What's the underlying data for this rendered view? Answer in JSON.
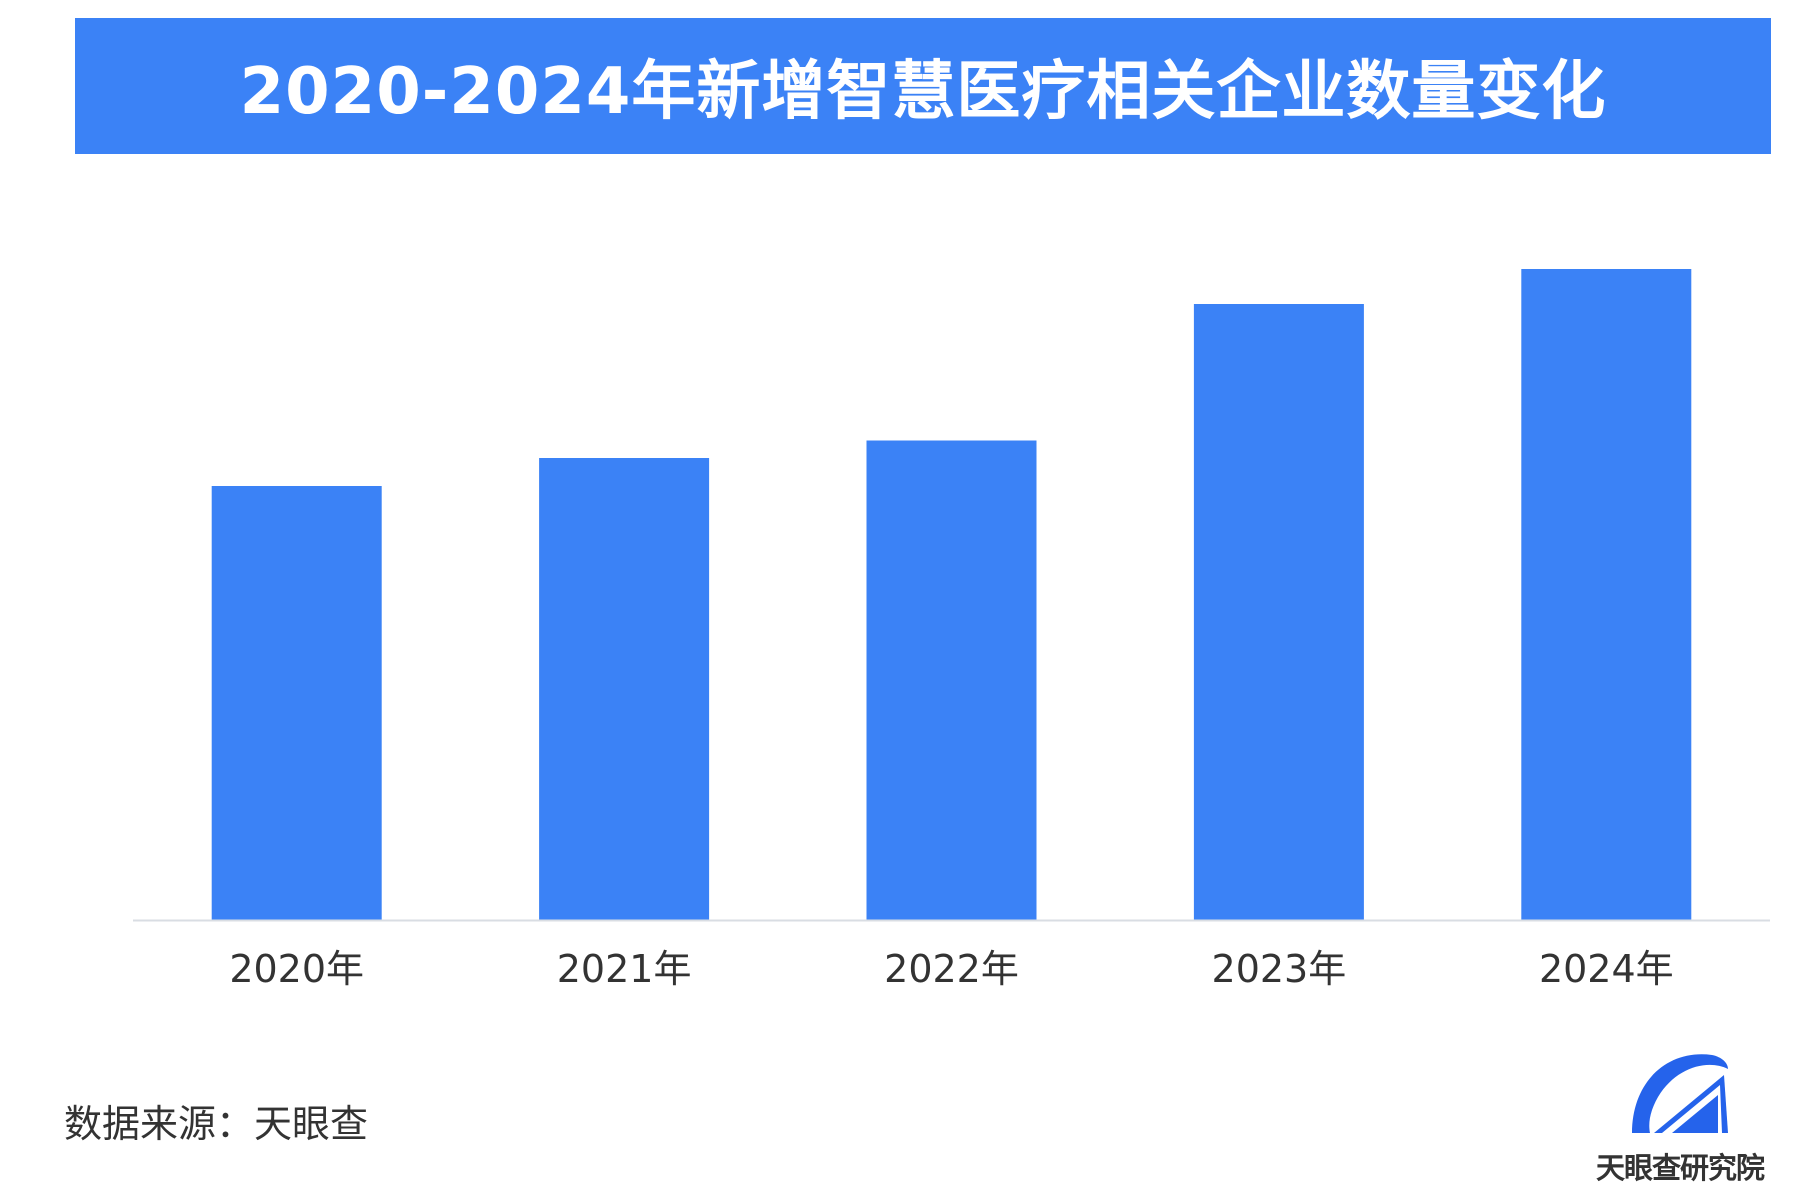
{
  "title": "2020-2024年新增智慧医疗相关企业数量变化",
  "source": "数据来源：天眼查",
  "logo_text": "天眼查研究院",
  "colors": {
    "banner": "#3b82f6",
    "bar": "#3b82f6",
    "axis": "#d9dde3",
    "text": "#333333"
  },
  "chart_data": {
    "type": "bar",
    "title": "2020-2024年新增智慧医疗相关企业数量变化",
    "categories": [
      "2020年",
      "2021年",
      "2022年",
      "2023年",
      "2024年"
    ],
    "values": [
      62,
      66,
      68.5,
      88,
      93
    ],
    "ylim": [
      0,
      100
    ],
    "xlabel": "",
    "ylabel": "",
    "grid": false,
    "legend": "none",
    "y_axis_shown": false
  }
}
